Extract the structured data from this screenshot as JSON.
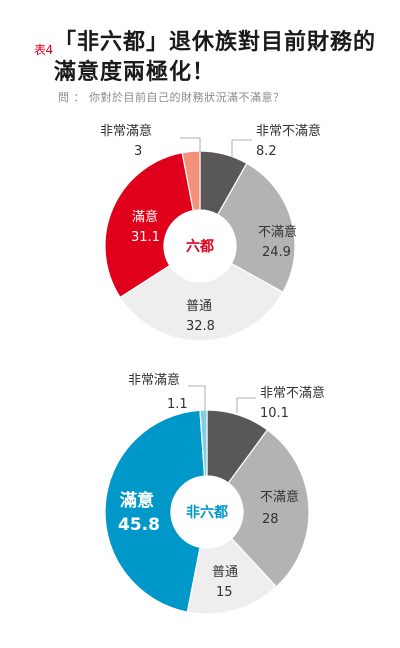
{
  "header": {
    "tag": "表4",
    "title": "「非六都」退休族對目前財務的滿意度兩極化！",
    "subtitle": "問 ： 你對於目前自己的財務狀況滿不滿意？"
  },
  "chart_data": [
    {
      "type": "pie",
      "donut": true,
      "center_label": "六都",
      "slices": [
        {
          "label": "非常不滿意",
          "value": 8.2,
          "color": "#595757"
        },
        {
          "label": "不滿意",
          "value": 24.9,
          "color": "#b3b3b3"
        },
        {
          "label": "普通",
          "value": 32.8,
          "color": "#eeeeee"
        },
        {
          "label": "滿意",
          "value": 31.1,
          "color": "#e0001b"
        },
        {
          "label": "非常滿意",
          "value": 3.0,
          "color": "#f39279"
        }
      ]
    },
    {
      "type": "pie",
      "donut": true,
      "center_label": "非六都",
      "slices": [
        {
          "label": "非常不滿意",
          "value": 10.1,
          "color": "#595757"
        },
        {
          "label": "不滿意",
          "value": 28.0,
          "color": "#b3b3b3"
        },
        {
          "label": "普通",
          "value": 15,
          "color": "#eeeeee"
        },
        {
          "label": "滿意",
          "value": 45.8,
          "color": "#0098c8"
        },
        {
          "label": "非常滿意",
          "value": 1.1,
          "color": "#7fcfe8"
        }
      ]
    }
  ]
}
